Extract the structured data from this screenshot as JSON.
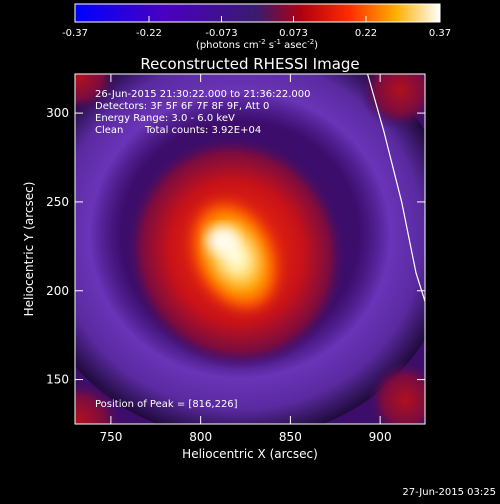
{
  "colorbar": {
    "ticks": [
      "-0.37",
      "-0.22",
      "-0.073",
      "0.073",
      "0.22",
      "0.37"
    ],
    "tick_values": [
      -0.37,
      -0.22,
      -0.073,
      0.073,
      0.22,
      0.37
    ],
    "min": -0.37,
    "max": 0.37,
    "units_prefix": "(photons cm",
    "units_sup1": "-2",
    "units_mid1": " s",
    "units_sup2": "-1",
    "units_mid2": " asec",
    "units_sup3": "-2",
    "units_suffix": ")"
  },
  "chart_data": {
    "type": "heatmap",
    "title": "Reconstructed RHESSI Image",
    "xlabel": "Heliocentric X (arcsec)",
    "ylabel": "Heliocentric Y (arcsec)",
    "xlim": [
      730,
      925
    ],
    "ylim": [
      125,
      322
    ],
    "x_ticks": [
      750,
      800,
      850,
      900
    ],
    "y_ticks": [
      150,
      200,
      250,
      300
    ],
    "colormap": "black-blue-purple-red-yellow-white",
    "peak": [
      816,
      226
    ],
    "annotations": {
      "time_range": "26-Jun-2015 21:30:22.000 to 21:36:22.000",
      "detectors": "Detectors: 3F 5F 6F 7F 8F 9F, Att 0",
      "energy": "Energy Range: 3.0 - 6.0 keV",
      "clean_label": "Clean",
      "counts": "Total counts: 3.92E+04",
      "peak_text": "Position of Peak = [816,226]"
    },
    "limb_line": [
      [
        893,
        322
      ],
      [
        902,
        290
      ],
      [
        912,
        250
      ],
      [
        920,
        210
      ],
      [
        925,
        194
      ]
    ]
  },
  "footer": {
    "date_stamp": "27-Jun-2015 03:25"
  }
}
